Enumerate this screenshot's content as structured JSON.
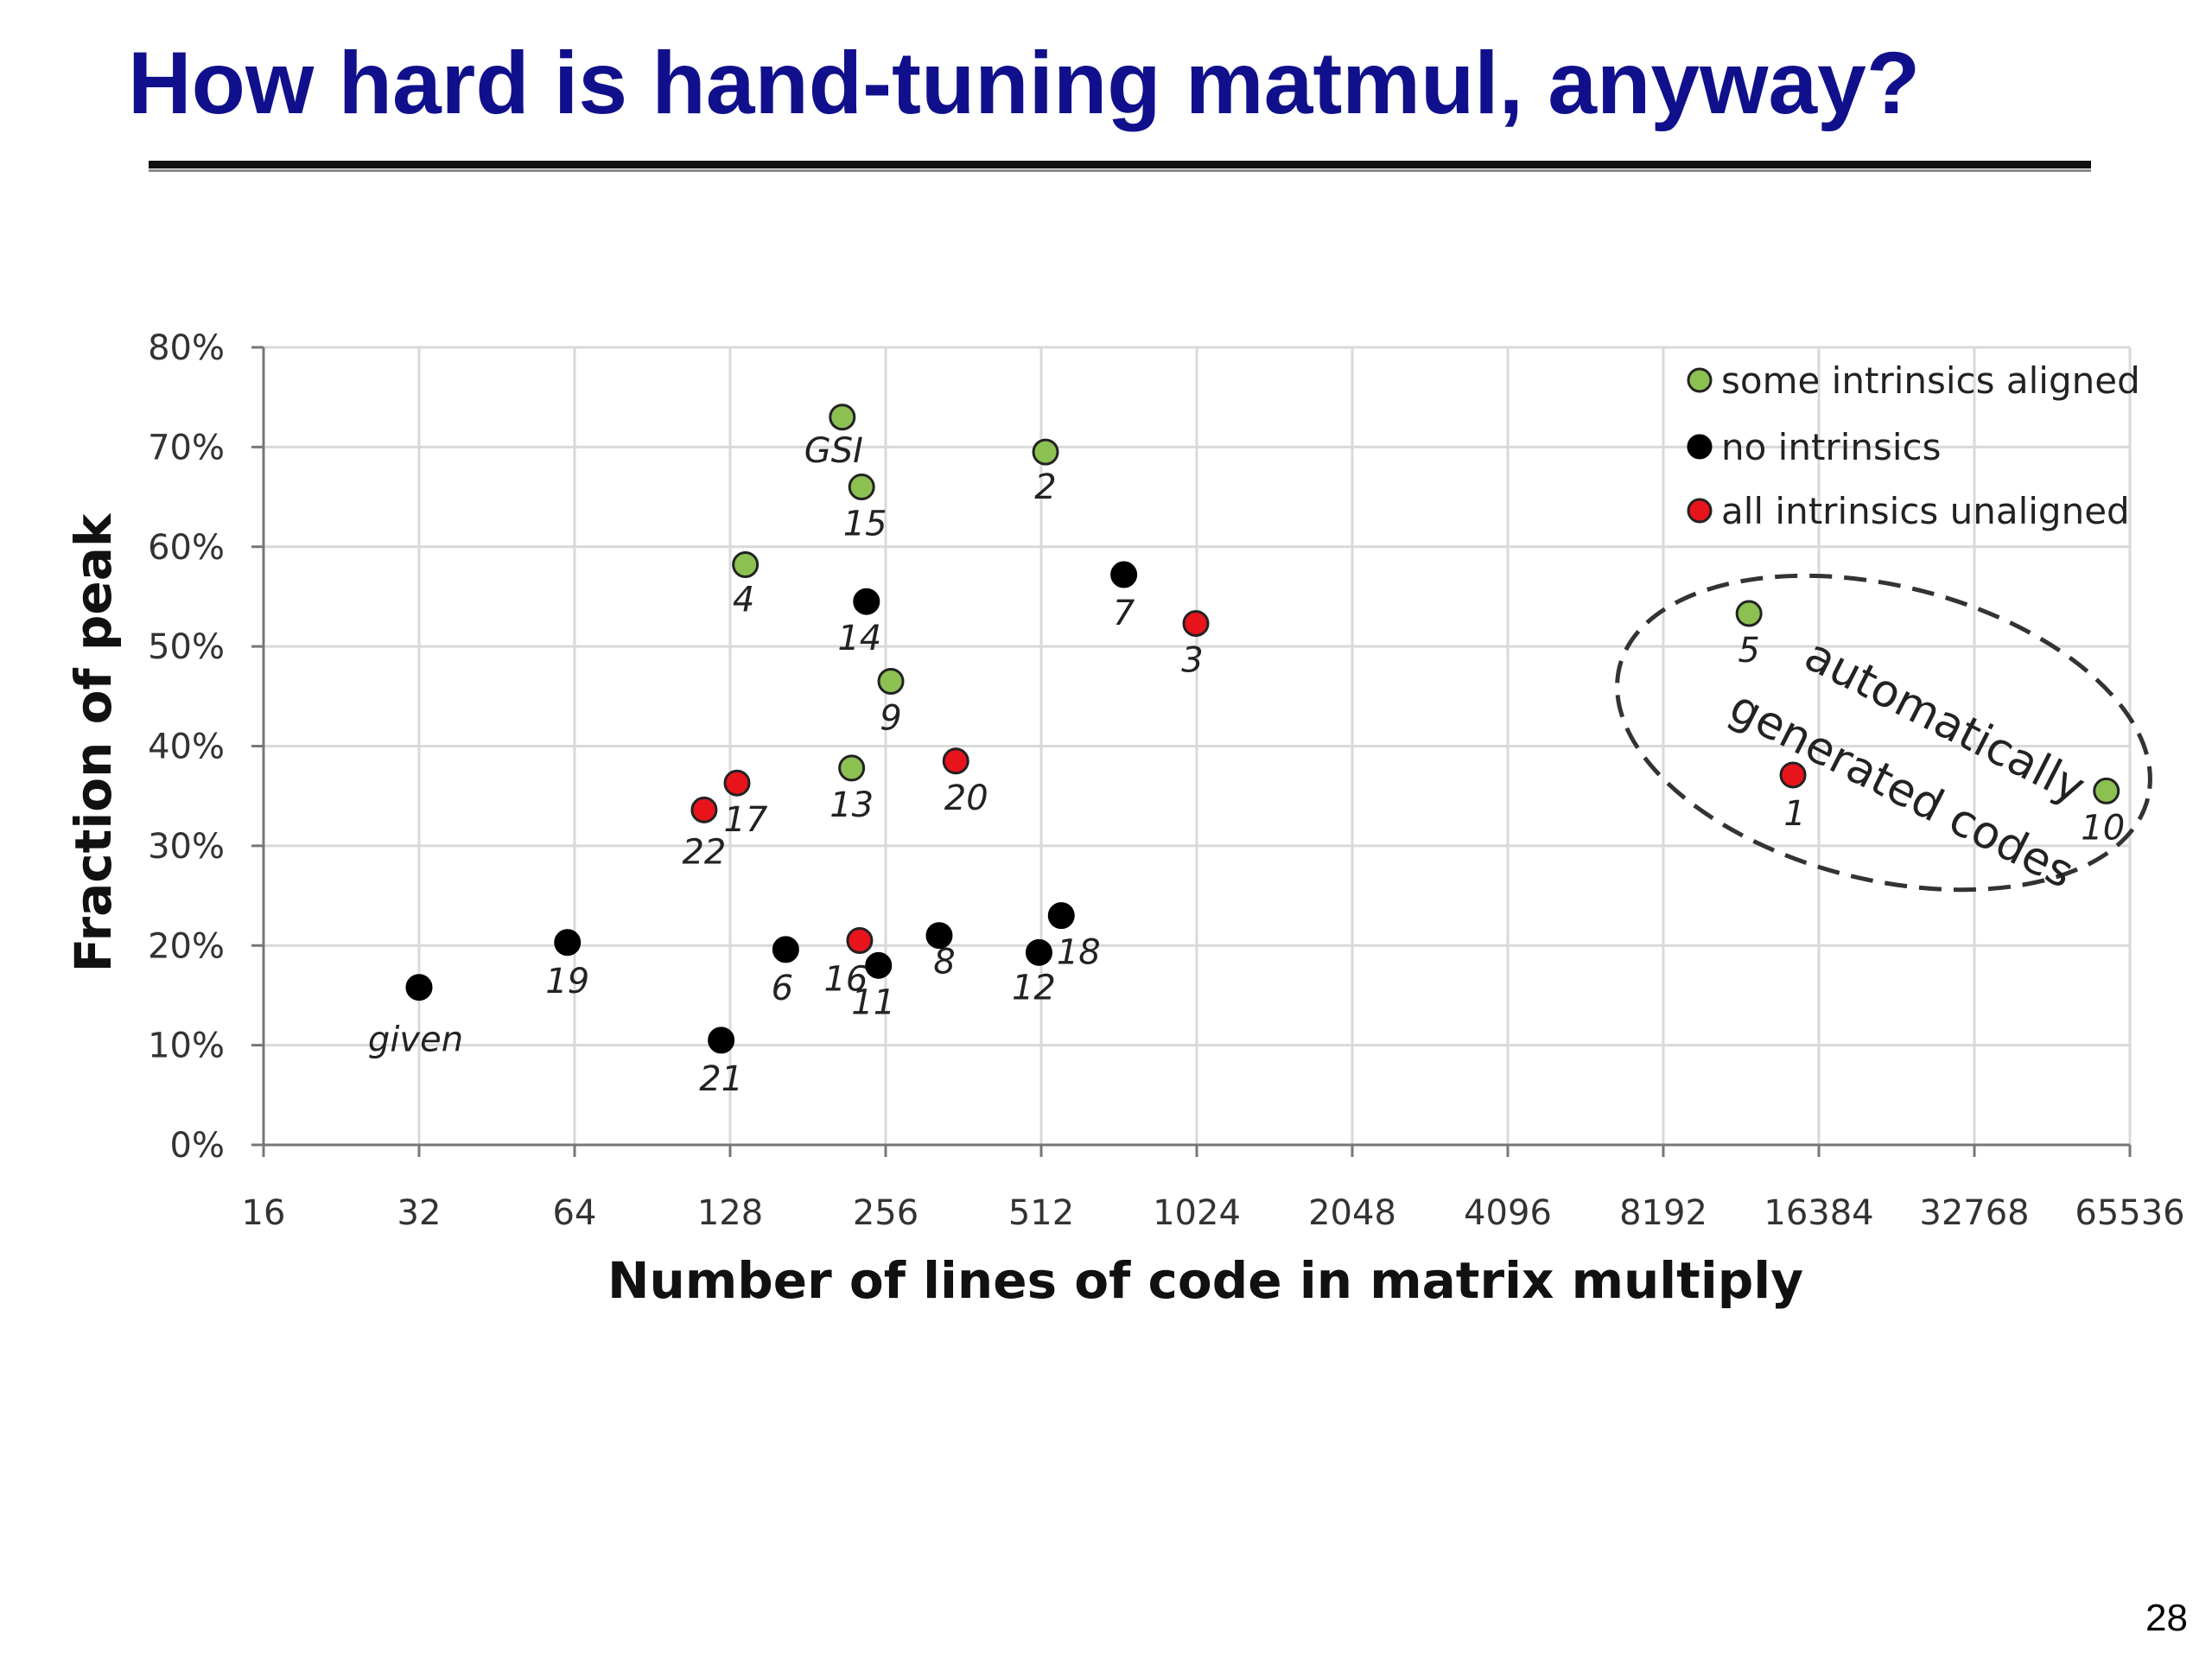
{
  "slide": {
    "title": "How hard is hand-tuning matmul, anyway?",
    "page_number": "28"
  },
  "colors": {
    "title": "#10108c",
    "green": "#8cc152",
    "black": "#000000",
    "red": "#e8141c",
    "grid": "#d9d9d9"
  },
  "chart_data": {
    "type": "scatter",
    "x_scale": "log2",
    "xlim": [
      16,
      65536
    ],
    "ylim": [
      0,
      80
    ],
    "xlabel": "Number of lines of code in matrix multiply",
    "ylabel": "Fraction of peak",
    "x_ticks": [
      "16",
      "32",
      "64",
      "128",
      "256",
      "512",
      "1024",
      "2048",
      "4096",
      "8192",
      "16384",
      "32768",
      "65536"
    ],
    "y_ticks": [
      "0%",
      "10%",
      "20%",
      "30%",
      "40%",
      "50%",
      "60%",
      "70%",
      "80%"
    ],
    "grid": true,
    "legend_position": "top-right",
    "series": [
      {
        "name": "some intrinsics aligned",
        "color": "#8cc152",
        "points": [
          {
            "label": "GSI",
            "x": 211,
            "y": 73
          },
          {
            "label": "2",
            "x": 522,
            "y": 69.5
          },
          {
            "label": "15",
            "x": 230,
            "y": 66
          },
          {
            "label": "4",
            "x": 137,
            "y": 58.2
          },
          {
            "label": "9",
            "x": 262,
            "y": 46.5
          },
          {
            "label": "13",
            "x": 220,
            "y": 37.8
          },
          {
            "label": "5",
            "x": 12000,
            "y": 53.3
          },
          {
            "label": "10",
            "x": 59000,
            "y": 35.5
          }
        ]
      },
      {
        "name": "no intrinsics",
        "color": "#000000",
        "points": [
          {
            "label": "14",
            "x": 235,
            "y": 54.5
          },
          {
            "label": "7",
            "x": 740,
            "y": 57.2
          },
          {
            "label": "19",
            "x": 62,
            "y": 20.3
          },
          {
            "label": "6",
            "x": 164,
            "y": 19.6
          },
          {
            "label": "11",
            "x": 248,
            "y": 18
          },
          {
            "label": "8",
            "x": 325,
            "y": 21
          },
          {
            "label": "12",
            "x": 507,
            "y": 19.3
          },
          {
            "label": "18",
            "x": 560,
            "y": 23
          },
          {
            "label": "given",
            "x": 32,
            "y": 15.8
          },
          {
            "label": "21",
            "x": 123,
            "y": 10.5
          }
        ]
      },
      {
        "name": "all intrinsics unaligned",
        "color": "#e8141c",
        "points": [
          {
            "label": "3",
            "x": 1020,
            "y": 52.3
          },
          {
            "label": "20",
            "x": 350,
            "y": 38.5
          },
          {
            "label": "17",
            "x": 132,
            "y": 36.3
          },
          {
            "label": "22",
            "x": 114,
            "y": 33.6
          },
          {
            "label": "16",
            "x": 228,
            "y": 20.5
          },
          {
            "label": "1",
            "x": 14600,
            "y": 37.1
          }
        ]
      }
    ],
    "annotation": {
      "text_line_1": "automatically",
      "text_line_2": "generated codes"
    }
  }
}
